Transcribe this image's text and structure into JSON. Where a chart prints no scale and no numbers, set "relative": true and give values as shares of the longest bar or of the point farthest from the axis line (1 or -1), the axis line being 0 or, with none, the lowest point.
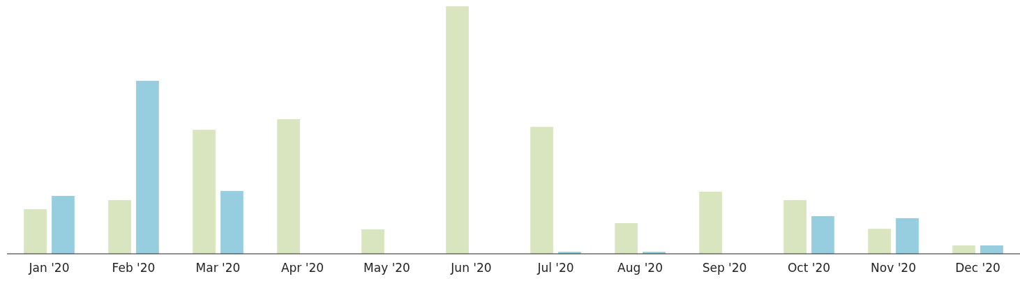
{
  "chart_data": {
    "type": "bar",
    "relative": true,
    "categories": [
      "Jan '20",
      "Feb '20",
      "Mar '20",
      "Apr '20",
      "May '20",
      "Jun '20",
      "Jul '20",
      "Aug '20",
      "Sep '20",
      "Oct '20",
      "Nov '20",
      "Dec '20"
    ],
    "series": [
      {
        "color": "#d9e5bf",
        "values": [
          0.18,
          0.217,
          0.501,
          0.544,
          0.099,
          1,
          0.513,
          0.124,
          0.251,
          0.217,
          0.101,
          0.034
        ]
      },
      {
        "color": "#96cddf",
        "values": [
          0.234,
          0.699,
          0.254,
          0,
          0,
          0,
          0.008,
          0.008,
          0,
          0.152,
          0.144,
          0.034
        ]
      }
    ]
  }
}
